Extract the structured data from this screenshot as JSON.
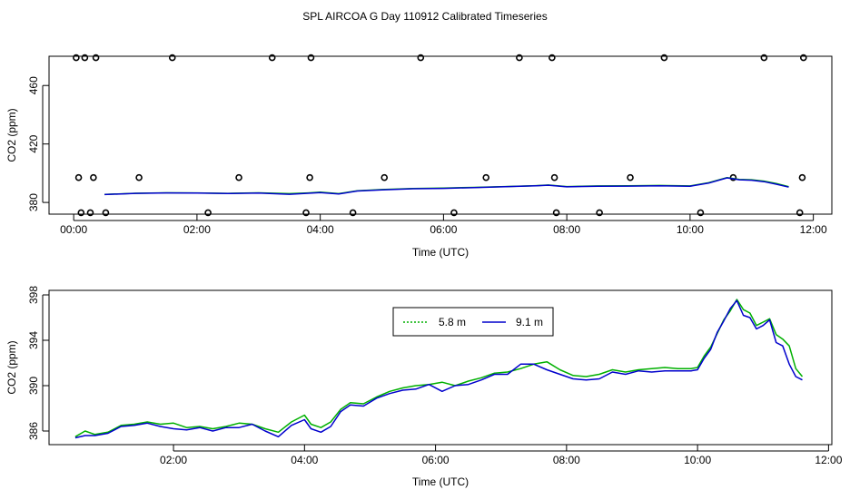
{
  "title": "SPL AIRCOA G  Day 110912  Calibrated Timeseries",
  "chart_data": [
    {
      "type": "line+scatter",
      "xlabel": "Time (UTC)",
      "ylabel": "CO2 (ppm)",
      "xlim": [
        -0.4,
        12.3
      ],
      "ylim": [
        372,
        480
      ],
      "xticks": [
        0,
        2,
        4,
        6,
        8,
        10,
        12
      ],
      "xtick_labels": [
        "00:00",
        "02:00",
        "04:00",
        "06:00",
        "08:00",
        "10:00",
        "12:00"
      ],
      "yticks": [
        380,
        420,
        460
      ],
      "ytick_labels": [
        "380",
        "420",
        "460"
      ],
      "series": [
        {
          "color": "#00b000",
          "x": [
            0.5,
            1.0,
            1.5,
            2.0,
            2.5,
            3.0,
            3.5,
            3.8,
            4.0,
            4.3,
            4.6,
            5.0,
            5.5,
            6.0,
            6.5,
            7.0,
            7.5,
            7.7,
            8.0,
            8.5,
            9.0,
            9.5,
            10.0,
            10.3,
            10.6,
            10.8,
            11.0,
            11.2,
            11.4,
            11.6
          ],
          "y": [
            385.5,
            386.3,
            386.6,
            386.5,
            386.2,
            386.6,
            386.0,
            386.5,
            387.0,
            386.0,
            388.0,
            388.8,
            389.5,
            389.9,
            390.3,
            390.9,
            391.5,
            391.9,
            390.9,
            391.3,
            391.4,
            391.6,
            391.3,
            393.5,
            397.0,
            395.8,
            395.5,
            394.6,
            393.0,
            390.8
          ]
        },
        {
          "color": "#0000cc",
          "x": [
            0.5,
            1.0,
            1.5,
            2.0,
            2.5,
            3.0,
            3.5,
            3.8,
            4.0,
            4.3,
            4.6,
            5.0,
            5.5,
            6.0,
            6.5,
            7.0,
            7.5,
            7.7,
            8.0,
            8.5,
            9.0,
            9.5,
            10.0,
            10.3,
            10.6,
            10.8,
            11.0,
            11.2,
            11.4,
            11.6
          ],
          "y": [
            385.4,
            386.2,
            386.5,
            386.4,
            386.1,
            386.4,
            385.6,
            386.3,
            386.8,
            385.8,
            387.8,
            388.6,
            389.4,
            389.6,
            390.2,
            390.8,
            391.4,
            391.8,
            390.7,
            391.1,
            391.2,
            391.4,
            391.1,
            393.2,
            396.8,
            395.5,
            395.2,
            394.2,
            392.5,
            390.5
          ]
        }
      ],
      "points": {
        "x": [
          0.04,
          0.18,
          0.36,
          1.6,
          3.22,
          3.85,
          5.63,
          7.23,
          7.76,
          9.58,
          11.2,
          11.84,
          0.08,
          0.32,
          1.06,
          2.68,
          3.83,
          5.04,
          6.69,
          7.8,
          9.03,
          10.7,
          11.82,
          0.12,
          0.27,
          0.52,
          2.18,
          3.77,
          4.53,
          6.17,
          7.83,
          8.53,
          10.17,
          11.78
        ],
        "y": [
          479,
          479,
          479,
          479,
          479,
          479,
          479,
          479,
          479,
          479,
          479,
          479,
          397,
          397,
          397,
          397,
          397,
          397,
          397,
          397,
          397,
          397,
          397,
          373,
          373,
          373,
          373,
          373,
          373,
          373,
          373,
          373,
          373,
          373
        ]
      }
    },
    {
      "type": "line",
      "xlabel": "Time (UTC)",
      "ylabel": "CO2 (ppm)",
      "xlim": [
        0.1,
        12.05
      ],
      "ylim": [
        384.8,
        398.4
      ],
      "xticks": [
        2,
        4,
        6,
        8,
        10,
        12
      ],
      "xtick_labels": [
        "02:00",
        "04:00",
        "06:00",
        "08:00",
        "10:00",
        "12:00"
      ],
      "yticks": [
        386,
        390,
        394,
        398
      ],
      "ytick_labels": [
        "386",
        "390",
        "394",
        "398"
      ],
      "legend": {
        "placement": "top-center",
        "entries": [
          "5.8 m",
          "9.1 m"
        ]
      },
      "series": [
        {
          "name": "5.8 m",
          "color": "#00b000",
          "x": [
            0.5,
            0.65,
            0.8,
            1.0,
            1.2,
            1.4,
            1.6,
            1.8,
            2.0,
            2.2,
            2.4,
            2.6,
            2.8,
            3.0,
            3.2,
            3.4,
            3.6,
            3.8,
            4.0,
            4.1,
            4.25,
            4.4,
            4.55,
            4.7,
            4.9,
            5.1,
            5.3,
            5.5,
            5.7,
            5.9,
            6.1,
            6.3,
            6.5,
            6.7,
            6.9,
            7.1,
            7.3,
            7.5,
            7.7,
            7.9,
            8.1,
            8.3,
            8.5,
            8.7,
            8.9,
            9.1,
            9.3,
            9.5,
            9.7,
            9.9,
            10.0,
            10.1,
            10.2,
            10.3,
            10.4,
            10.5,
            10.6,
            10.7,
            10.8,
            10.9,
            11.0,
            11.1,
            11.2,
            11.3,
            11.4,
            11.5,
            11.6
          ],
          "y": [
            385.5,
            386.0,
            385.7,
            385.9,
            386.5,
            386.6,
            386.8,
            386.6,
            386.7,
            386.3,
            386.4,
            386.2,
            386.4,
            386.7,
            386.6,
            386.2,
            385.9,
            386.8,
            387.4,
            386.6,
            386.3,
            386.8,
            387.9,
            388.5,
            388.4,
            389.0,
            389.5,
            389.8,
            390.0,
            390.1,
            390.3,
            390.0,
            390.4,
            390.7,
            391.1,
            391.2,
            391.5,
            391.9,
            392.1,
            391.4,
            390.9,
            390.8,
            391.0,
            391.4,
            391.2,
            391.4,
            391.5,
            391.6,
            391.5,
            391.5,
            391.6,
            392.6,
            393.4,
            394.6,
            395.8,
            396.6,
            397.6,
            396.7,
            396.4,
            395.3,
            395.6,
            395.9,
            394.5,
            394.1,
            393.5,
            391.5,
            390.8
          ]
        },
        {
          "name": "9.1 m",
          "color": "#0000cc",
          "x": [
            0.5,
            0.65,
            0.8,
            1.0,
            1.2,
            1.4,
            1.6,
            1.8,
            2.0,
            2.2,
            2.4,
            2.6,
            2.8,
            3.0,
            3.2,
            3.4,
            3.6,
            3.8,
            4.0,
            4.1,
            4.25,
            4.4,
            4.55,
            4.7,
            4.9,
            5.1,
            5.3,
            5.5,
            5.7,
            5.9,
            6.1,
            6.3,
            6.5,
            6.7,
            6.9,
            7.1,
            7.3,
            7.5,
            7.7,
            7.9,
            8.1,
            8.3,
            8.5,
            8.7,
            8.9,
            9.1,
            9.3,
            9.5,
            9.7,
            9.9,
            10.0,
            10.1,
            10.2,
            10.3,
            10.4,
            10.5,
            10.6,
            10.7,
            10.8,
            10.9,
            11.0,
            11.1,
            11.2,
            11.3,
            11.4,
            11.5,
            11.6
          ],
          "y": [
            385.4,
            385.6,
            385.6,
            385.8,
            386.4,
            386.5,
            386.7,
            386.4,
            386.2,
            386.1,
            386.3,
            386.0,
            386.3,
            386.3,
            386.6,
            386.0,
            385.5,
            386.5,
            387.0,
            386.2,
            385.9,
            386.4,
            387.7,
            388.3,
            388.2,
            388.9,
            389.3,
            389.6,
            389.7,
            390.1,
            389.5,
            390.0,
            390.1,
            390.5,
            391.0,
            391.0,
            391.9,
            391.9,
            391.4,
            391.0,
            390.6,
            390.5,
            390.6,
            391.2,
            391.0,
            391.3,
            391.2,
            391.3,
            391.3,
            391.3,
            391.4,
            392.4,
            393.2,
            394.7,
            395.7,
            396.8,
            397.5,
            396.2,
            396.0,
            395.0,
            395.3,
            395.8,
            393.8,
            393.5,
            391.9,
            390.8,
            390.5
          ]
        }
      ]
    }
  ]
}
